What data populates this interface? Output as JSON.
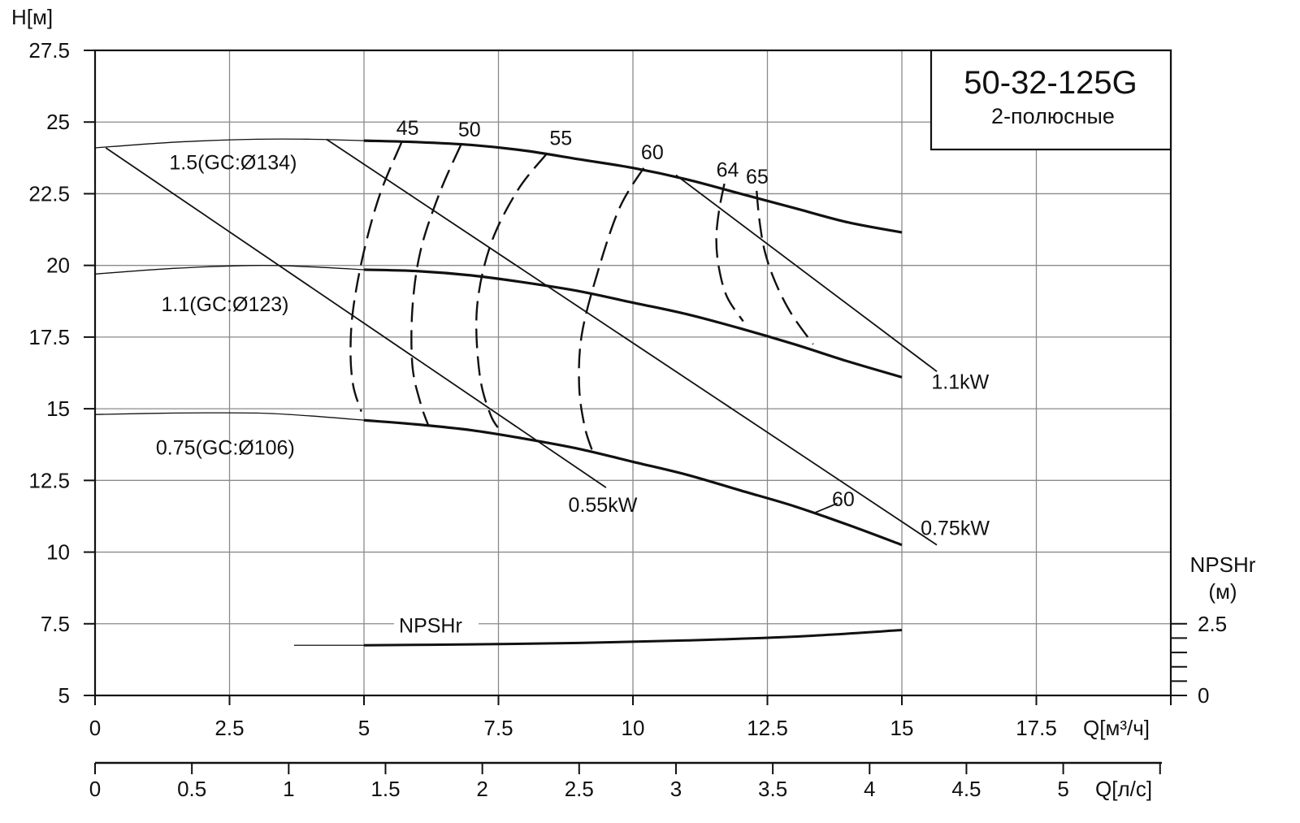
{
  "chart_data": {
    "type": "line",
    "title": "50-32-125G",
    "subtitle": "2-полюсные",
    "ylabel": "H[м]",
    "xlabel": "Q[м³/ч]",
    "x2label": "Q[л/с]",
    "y2label_line1": "NPSHr",
    "y2label_line2": "(м)",
    "xlim": [
      0,
      20
    ],
    "ylim": [
      5,
      27.5
    ],
    "x_ticks": [
      "0",
      "2.5",
      "5",
      "7.5",
      "10",
      "12.5",
      "15",
      "17.5"
    ],
    "y_ticks": [
      "5",
      "7.5",
      "10",
      "12.5",
      "15",
      "17.5",
      "20",
      "22.5",
      "25",
      "27.5"
    ],
    "x2_ticks": [
      "0",
      "0.5",
      "1",
      "1.5",
      "2",
      "2.5",
      "3",
      "3.5",
      "4",
      "4.5",
      "5"
    ],
    "y2_ticks": [
      "0",
      "2.5"
    ],
    "grid": true,
    "head_curves": [
      {
        "name": "1.5(GC:Ø134)",
        "thin": [
          [
            0,
            24.1
          ],
          [
            1.5,
            24.3
          ],
          [
            3,
            24.4
          ],
          [
            4,
            24.4
          ],
          [
            5,
            24.35
          ]
        ],
        "bold": [
          [
            5,
            24.35
          ],
          [
            6,
            24.3
          ],
          [
            7,
            24.2
          ],
          [
            8,
            24.0
          ],
          [
            9,
            23.7
          ],
          [
            10,
            23.4
          ],
          [
            11,
            23.0
          ],
          [
            12,
            22.5
          ],
          [
            13,
            22.0
          ],
          [
            14,
            21.5
          ],
          [
            15,
            21.15
          ]
        ]
      },
      {
        "name": "1.1(GC:Ø123)",
        "thin": [
          [
            0,
            19.7
          ],
          [
            1.5,
            19.9
          ],
          [
            3,
            20.0
          ],
          [
            4,
            19.95
          ],
          [
            5,
            19.85
          ]
        ],
        "bold": [
          [
            5,
            19.85
          ],
          [
            6,
            19.8
          ],
          [
            7,
            19.65
          ],
          [
            8,
            19.4
          ],
          [
            9,
            19.1
          ],
          [
            10,
            18.7
          ],
          [
            11,
            18.3
          ],
          [
            12,
            17.8
          ],
          [
            13,
            17.25
          ],
          [
            14,
            16.65
          ],
          [
            15,
            16.1
          ]
        ]
      },
      {
        "name": "0.75(GC:Ø106)",
        "thin": [
          [
            0,
            14.8
          ],
          [
            1.5,
            14.85
          ],
          [
            3,
            14.85
          ],
          [
            4,
            14.75
          ],
          [
            5,
            14.6
          ]
        ],
        "bold": [
          [
            5,
            14.6
          ],
          [
            6,
            14.45
          ],
          [
            7,
            14.25
          ],
          [
            8,
            13.95
          ],
          [
            9,
            13.6
          ],
          [
            10,
            13.15
          ],
          [
            11,
            12.7
          ],
          [
            12,
            12.15
          ],
          [
            13,
            11.6
          ],
          [
            14,
            10.95
          ],
          [
            15,
            10.25
          ]
        ]
      }
    ],
    "power_lines": [
      {
        "name": "0.55kW",
        "points": [
          [
            0.2,
            24.1
          ],
          [
            9.5,
            12.25
          ]
        ]
      },
      {
        "name": "0.75kW",
        "points": [
          [
            4.3,
            24.4
          ],
          [
            15.65,
            10.25
          ]
        ]
      },
      {
        "name": "1.1kW",
        "points": [
          [
            10.8,
            23.15
          ],
          [
            15.65,
            16.3
          ]
        ]
      }
    ],
    "efficiency_lines": [
      {
        "name": "45",
        "points": [
          [
            5.7,
            24.3
          ],
          [
            5.3,
            22.5
          ],
          [
            5.0,
            20.5
          ],
          [
            4.8,
            18.5
          ],
          [
            4.75,
            17.0
          ],
          [
            4.8,
            15.8
          ],
          [
            4.95,
            14.9
          ]
        ]
      },
      {
        "name": "50",
        "points": [
          [
            6.8,
            24.2
          ],
          [
            6.4,
            22.5
          ],
          [
            6.05,
            20.5
          ],
          [
            5.9,
            18.5
          ],
          [
            5.9,
            16.5
          ],
          [
            6.05,
            15.2
          ],
          [
            6.2,
            14.4
          ]
        ]
      },
      {
        "name": "55",
        "points": [
          [
            8.4,
            23.9
          ],
          [
            7.85,
            22.6
          ],
          [
            7.35,
            20.7
          ],
          [
            7.1,
            18.5
          ],
          [
            7.15,
            16.2
          ],
          [
            7.35,
            14.8
          ],
          [
            7.55,
            14.2
          ]
        ]
      },
      {
        "name": "60",
        "points": [
          [
            10.2,
            23.4
          ],
          [
            9.75,
            22.0
          ],
          [
            9.35,
            19.8
          ],
          [
            9.05,
            17.6
          ],
          [
            9.0,
            15.8
          ],
          [
            9.1,
            14.4
          ],
          [
            9.25,
            13.5
          ]
        ]
      },
      {
        "name": "64",
        "points": [
          [
            11.7,
            22.85
          ],
          [
            11.6,
            21.9
          ],
          [
            11.55,
            20.9
          ],
          [
            11.6,
            19.9
          ],
          [
            11.75,
            18.9
          ],
          [
            12.05,
            18.05
          ]
        ]
      },
      {
        "name": "65",
        "points": [
          [
            12.3,
            22.6
          ],
          [
            12.35,
            21.6
          ],
          [
            12.45,
            20.5
          ],
          [
            12.65,
            19.4
          ],
          [
            12.95,
            18.3
          ],
          [
            13.35,
            17.25
          ]
        ]
      },
      {
        "name": "60",
        "points": [
          [
            13.35,
            11.35
          ],
          [
            13.8,
            11.7
          ]
        ]
      }
    ],
    "npshr": {
      "name": "NPSHr",
      "thin": [
        [
          3.7,
          6.75
        ],
        [
          5,
          6.75
        ]
      ],
      "bold": [
        [
          5,
          6.75
        ],
        [
          7,
          6.78
        ],
        [
          9,
          6.83
        ],
        [
          11,
          6.92
        ],
        [
          13,
          7.05
        ],
        [
          15,
          7.28
        ]
      ]
    }
  }
}
